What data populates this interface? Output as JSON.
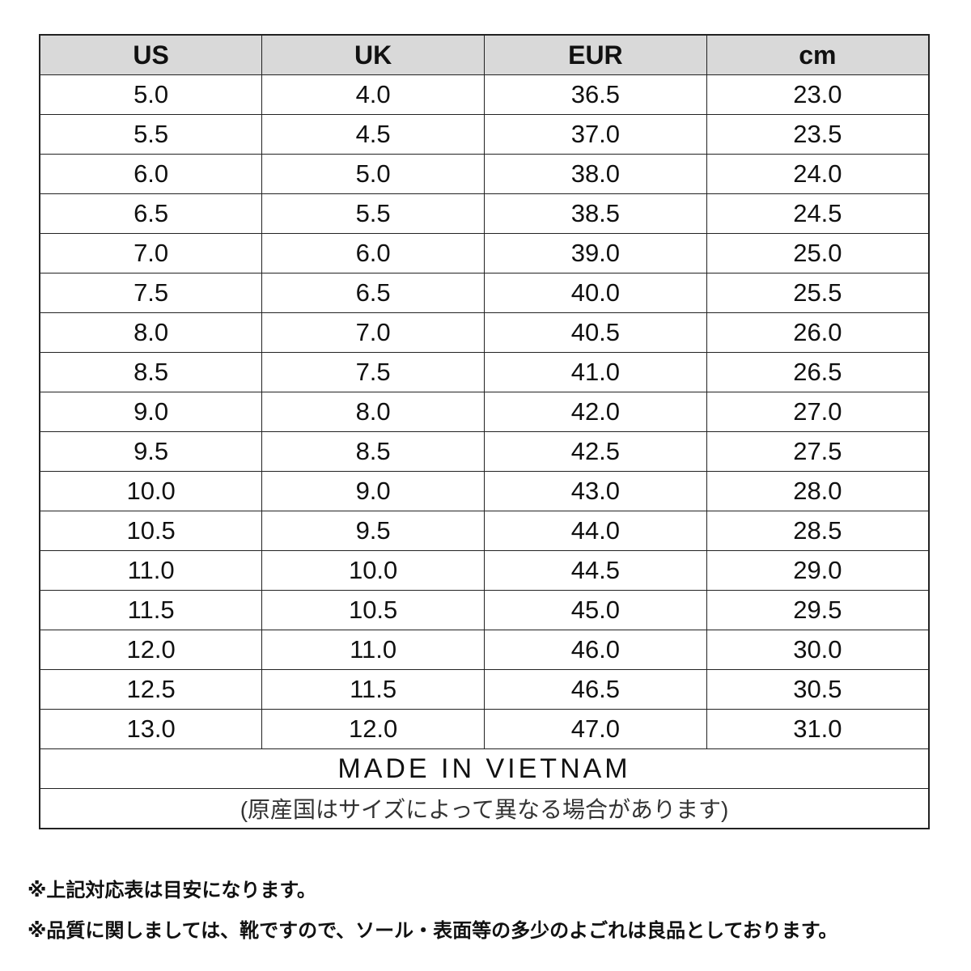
{
  "table": {
    "headers": [
      "US",
      "UK",
      "EUR",
      "cm"
    ],
    "rows": [
      [
        "5.0",
        "4.0",
        "36.5",
        "23.0"
      ],
      [
        "5.5",
        "4.5",
        "37.0",
        "23.5"
      ],
      [
        "6.0",
        "5.0",
        "38.0",
        "24.0"
      ],
      [
        "6.5",
        "5.5",
        "38.5",
        "24.5"
      ],
      [
        "7.0",
        "6.0",
        "39.0",
        "25.0"
      ],
      [
        "7.5",
        "6.5",
        "40.0",
        "25.5"
      ],
      [
        "8.0",
        "7.0",
        "40.5",
        "26.0"
      ],
      [
        "8.5",
        "7.5",
        "41.0",
        "26.5"
      ],
      [
        "9.0",
        "8.0",
        "42.0",
        "27.0"
      ],
      [
        "9.5",
        "8.5",
        "42.5",
        "27.5"
      ],
      [
        "10.0",
        "9.0",
        "43.0",
        "28.0"
      ],
      [
        "10.5",
        "9.5",
        "44.0",
        "28.5"
      ],
      [
        "11.0",
        "10.0",
        "44.5",
        "29.0"
      ],
      [
        "11.5",
        "10.5",
        "45.0",
        "29.5"
      ],
      [
        "12.0",
        "11.0",
        "46.0",
        "30.0"
      ],
      [
        "12.5",
        "11.5",
        "46.5",
        "30.5"
      ],
      [
        "13.0",
        "12.0",
        "47.0",
        "31.0"
      ]
    ],
    "made_in": "MADE IN VIETNAM",
    "origin_note": "(原産国はサイズによって異なる場合があります)"
  },
  "footnotes": [
    "※上記対応表は目安になります。",
    "※品質に関しましては、靴ですので、ソール・表面等の多少のよごれは良品としております。"
  ],
  "colors": {
    "header_bg": "#d9d9d9",
    "border": "#222222"
  }
}
